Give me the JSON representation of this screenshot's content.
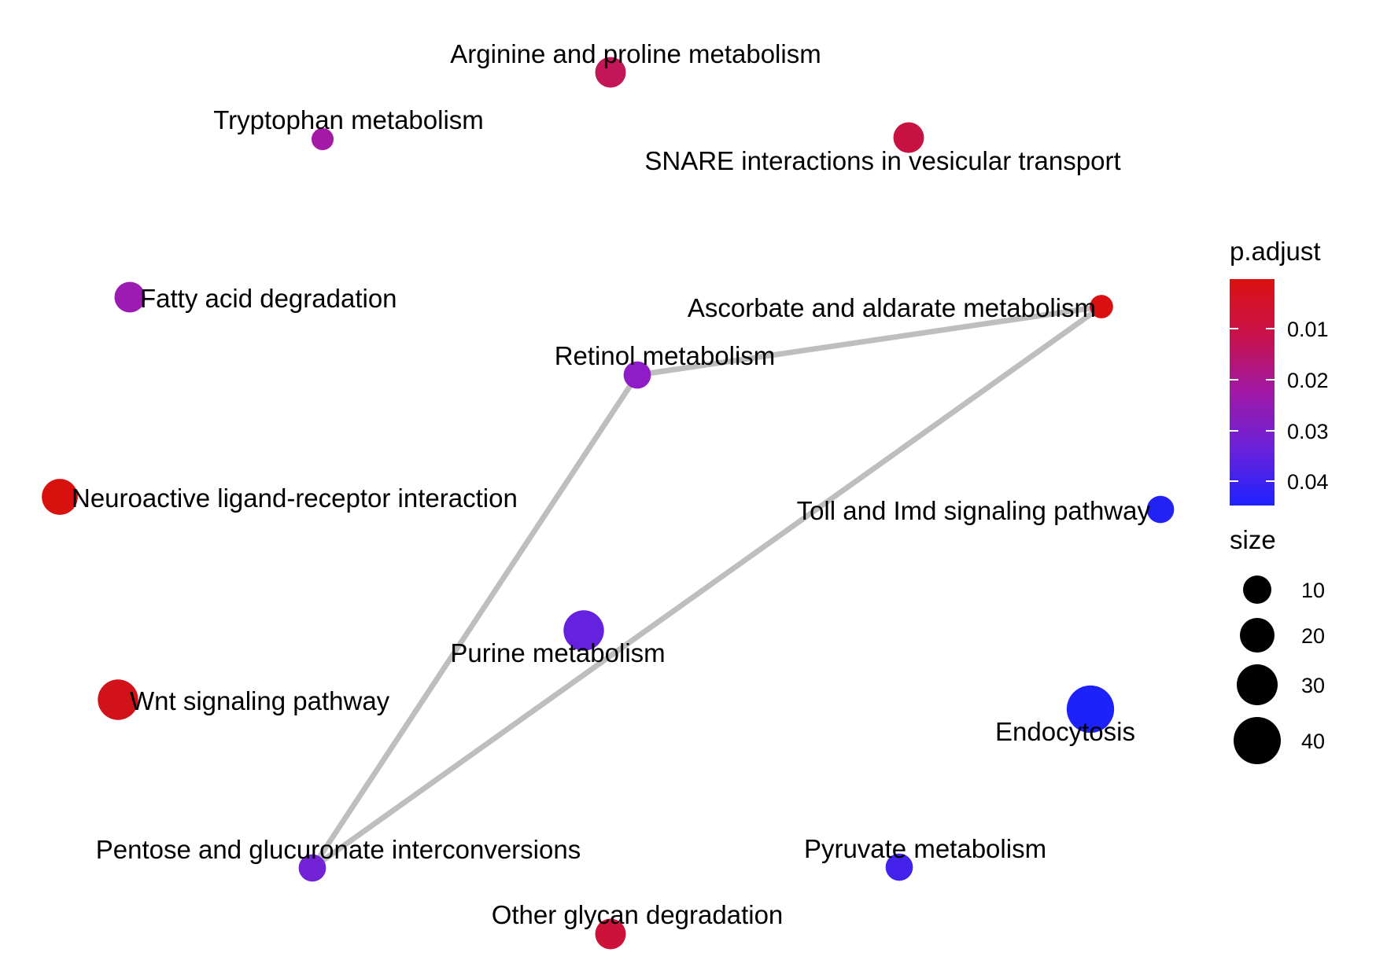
{
  "chart_data": {
    "type": "network",
    "nodes": [
      {
        "name": "Arginine and proline metabolism",
        "p_adjust": 0.012,
        "size": 14,
        "color": "#C31659"
      },
      {
        "name": "Tryptophan metabolism",
        "p_adjust": 0.022,
        "size": 5,
        "color": "#A619A7"
      },
      {
        "name": "SNARE interactions in vesicular transport",
        "p_adjust": 0.01,
        "size": 14,
        "color": "#C81242"
      },
      {
        "name": "Fatty acid degradation",
        "p_adjust": 0.027,
        "size": 14,
        "color": "#9B1BB3"
      },
      {
        "name": "Ascorbate and aldarate metabolism",
        "p_adjust": 0.003,
        "size": 6,
        "color": "#D90F12"
      },
      {
        "name": "Retinol metabolism",
        "p_adjust": 0.03,
        "size": 10,
        "color": "#8E1CC7"
      },
      {
        "name": "Neuroactive ligand-receptor interaction",
        "p_adjust": 0.002,
        "size": 22,
        "color": "#D8100E"
      },
      {
        "name": "Toll and Imd signaling pathway",
        "p_adjust": 0.044,
        "size": 10,
        "color": "#2222F5"
      },
      {
        "name": "Purine metabolism",
        "p_adjust": 0.038,
        "size": 30,
        "color": "#6422E0"
      },
      {
        "name": "Wnt signaling pathway",
        "p_adjust": 0.003,
        "size": 30,
        "color": "#D2121A"
      },
      {
        "name": "Endocytosis",
        "p_adjust": 0.046,
        "size": 45,
        "color": "#1E22FA"
      },
      {
        "name": "Pentose and glucuronate interconversions",
        "p_adjust": 0.035,
        "size": 10,
        "color": "#7322D6"
      },
      {
        "name": "Pyruvate metabolism",
        "p_adjust": 0.041,
        "size": 10,
        "color": "#4422EC"
      },
      {
        "name": "Other glycan degradation",
        "p_adjust": 0.008,
        "size": 14,
        "color": "#CC1238"
      }
    ],
    "edges": [
      [
        "Ascorbate and aldarate metabolism",
        "Retinol metabolism"
      ],
      [
        "Ascorbate and aldarate metabolism",
        "Pentose and glucuronate interconversions"
      ],
      [
        "Retinol metabolism",
        "Pentose and glucuronate interconversions"
      ]
    ],
    "legend": {
      "color_title": "p.adjust",
      "color_ticks": [
        "0.01",
        "0.02",
        "0.03",
        "0.04"
      ],
      "color_low": "#DD1111",
      "color_high": "#1F22FF",
      "size_title": "size",
      "size_ticks": [
        "10",
        "20",
        "30",
        "40"
      ],
      "placement": "right"
    },
    "edge_color": "#BEBEBE"
  }
}
